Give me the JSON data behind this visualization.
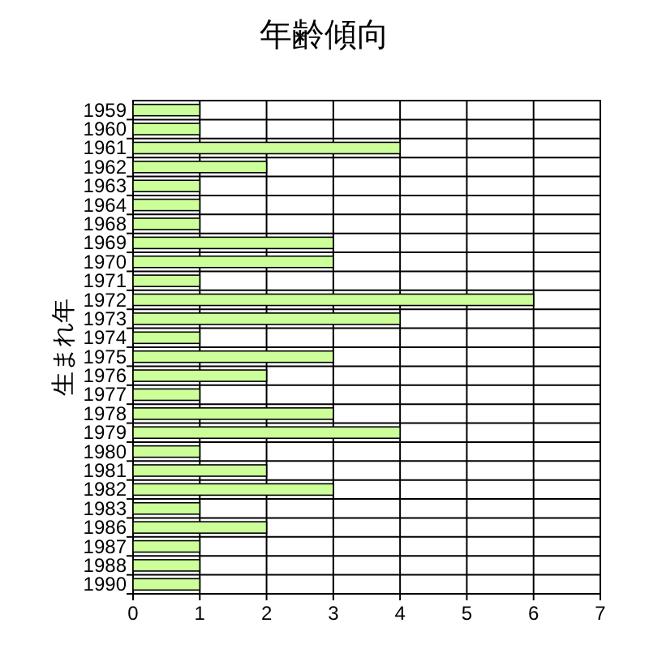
{
  "chart_data": {
    "type": "bar",
    "orientation": "horizontal",
    "title": "年齢傾向",
    "ylabel": "生まれ年",
    "categories": [
      "1959",
      "1960",
      "1961",
      "1962",
      "1963",
      "1964",
      "1968",
      "1969",
      "1970",
      "1971",
      "1972",
      "1973",
      "1974",
      "1975",
      "1976",
      "1977",
      "1978",
      "1979",
      "1980",
      "1981",
      "1982",
      "1983",
      "1986",
      "1987",
      "1988",
      "1990"
    ],
    "values": [
      1,
      1,
      4,
      2,
      1,
      1,
      1,
      3,
      3,
      1,
      6,
      4,
      1,
      3,
      2,
      1,
      3,
      4,
      1,
      2,
      3,
      1,
      2,
      1,
      1,
      1
    ],
    "color": "#ccff99",
    "xlim": [
      0,
      7
    ],
    "xticks": [
      0,
      1,
      2,
      3,
      4,
      5,
      6,
      7
    ],
    "grid": true
  }
}
